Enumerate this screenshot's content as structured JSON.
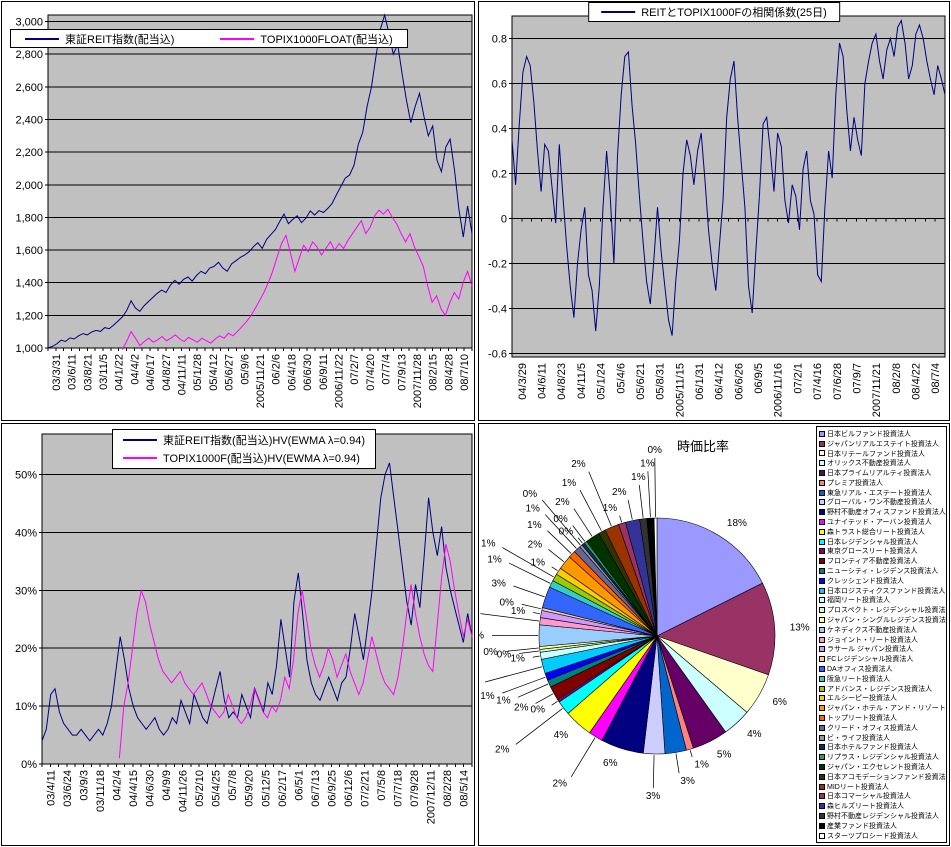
{
  "window": {
    "background": "#FFFFFF"
  },
  "palette": {
    "plot_bg": "#C0C0C0",
    "grid": "#000000",
    "navy": "#000080",
    "magenta": "#FF00FF"
  },
  "chart_data": [
    {
      "id": "reit-index-chart",
      "type": "line",
      "position": "top-left",
      "legend": [
        {
          "label": "東証REIT指数(配当込)",
          "color": "#000080"
        },
        {
          "label": "TOPIX1000FLOAT(配当込)",
          "color": "#FF00FF"
        }
      ],
      "ylim": [
        1000,
        3040
      ],
      "grid": {
        "min": 1000,
        "max": 3000,
        "step": 200
      },
      "y_tick_labels": [
        "3,000",
        "2,800",
        "2,600",
        "2,400",
        "2,200",
        "2,000",
        "1,800",
        "1,600",
        "1,400",
        "1,200",
        "1,000"
      ],
      "x_tick_labels": [
        "03/3/31",
        "03/6/11",
        "03/8/21",
        "03/11/5",
        "04/1/22",
        "04/4/2",
        "04/6/17",
        "04/8/27",
        "04/11/11",
        "05/1/28",
        "05/4/12",
        "05/6/27",
        "05/9/6",
        "2005/11/21",
        "06/2/6",
        "06/4/18",
        "06/6/30",
        "06/9/11",
        "2006/11/22",
        "07/2/7",
        "07/4/20",
        "07/7/4",
        "07/9/13",
        "2007/11/28",
        "08/2/15",
        "08/4/28",
        "08/7/10"
      ],
      "tick_axis": "bottom",
      "series": [
        {
          "name": "東証REIT指数(配当込)",
          "color": "#000080",
          "start_frac": 0,
          "values": [
            1000,
            1010,
            1025,
            1048,
            1040,
            1062,
            1055,
            1075,
            1088,
            1080,
            1098,
            1108,
            1102,
            1125,
            1118,
            1140,
            1165,
            1190,
            1230,
            1290,
            1245,
            1225,
            1260,
            1285,
            1310,
            1335,
            1355,
            1340,
            1385,
            1415,
            1390,
            1420,
            1435,
            1410,
            1445,
            1470,
            1455,
            1490,
            1500,
            1525,
            1490,
            1470,
            1515,
            1535,
            1555,
            1570,
            1590,
            1620,
            1645,
            1610,
            1665,
            1695,
            1725,
            1775,
            1820,
            1762,
            1788,
            1810,
            1768,
            1795,
            1840,
            1815,
            1842,
            1830,
            1855,
            1885,
            1940,
            1990,
            2040,
            2060,
            2120,
            2250,
            2320,
            2480,
            2600,
            2780,
            2950,
            3040,
            2930,
            2800,
            2860,
            2680,
            2520,
            2380,
            2480,
            2560,
            2420,
            2300,
            2360,
            2150,
            2080,
            2230,
            2280,
            2090,
            1850,
            1680,
            1870,
            1700
          ]
        },
        {
          "name": "TOPIX1000FLOAT(配当込)",
          "color": "#FF00FF",
          "start_frac": 0.175,
          "values": [
            990,
            1040,
            1100,
            1060,
            1015,
            1040,
            1060,
            1035,
            1050,
            1070,
            1045,
            1060,
            1080,
            1055,
            1040,
            1065,
            1050,
            1035,
            1060,
            1045,
            1030,
            1055,
            1075,
            1060,
            1090,
            1075,
            1100,
            1130,
            1160,
            1195,
            1240,
            1290,
            1340,
            1400,
            1470,
            1560,
            1640,
            1690,
            1580,
            1470,
            1550,
            1630,
            1590,
            1650,
            1620,
            1570,
            1610,
            1650,
            1600,
            1640,
            1610,
            1660,
            1700,
            1740,
            1780,
            1700,
            1740,
            1810,
            1845,
            1820,
            1850,
            1800,
            1760,
            1700,
            1650,
            1700,
            1620,
            1560,
            1500,
            1380,
            1280,
            1320,
            1240,
            1200,
            1280,
            1340,
            1300,
            1400,
            1470,
            1380
          ]
        }
      ]
    },
    {
      "id": "correlation-chart",
      "type": "line",
      "position": "top-right",
      "legend": [
        {
          "label": "REITとTOPIX1000Fの相関係数(25日)",
          "color": "#000080"
        }
      ],
      "ylim": [
        -0.615,
        0.9
      ],
      "grid": {
        "min": -0.6,
        "max": 0.8,
        "step": 0.2
      },
      "y_tick_labels": [
        "0.8",
        "0.6",
        "0.4",
        "0.2",
        "0",
        "-0.2",
        "-0.4",
        "-0.6"
      ],
      "x_tick_labels": [
        "04/3/29",
        "04/6/11",
        "04/8/23",
        "04/11/5",
        "05/1/24",
        "05/4/6",
        "05/6/21",
        "05/8/31",
        "2005/11/15",
        "06/1/31",
        "06/4/12",
        "06/6/26",
        "06/9/5",
        "2006/11/16",
        "07/2/1",
        "07/4/16",
        "07/6/28",
        "07/9/7",
        "2007/11/21",
        "08/2/8",
        "08/4/22",
        "08/7/4"
      ],
      "tick_axis": "zero",
      "series": [
        {
          "name": "REITとTOPIX1000Fの相関係数(25日)",
          "color": "#000080",
          "start_frac": 0,
          "values": [
            0.35,
            0.15,
            0.42,
            0.65,
            0.72,
            0.68,
            0.52,
            0.3,
            0.12,
            0.33,
            0.3,
            0.14,
            -0.02,
            0.33,
            0.1,
            -0.12,
            -0.3,
            -0.44,
            -0.2,
            -0.05,
            0.05,
            -0.25,
            -0.32,
            -0.5,
            -0.3,
            0.05,
            0.3,
            0.1,
            -0.2,
            0.28,
            0.55,
            0.72,
            0.74,
            0.5,
            0.33,
            0.1,
            -0.1,
            -0.28,
            -0.38,
            -0.18,
            0.05,
            -0.15,
            -0.3,
            -0.45,
            -0.52,
            -0.28,
            -0.1,
            0.2,
            0.35,
            0.28,
            0.15,
            0.3,
            0.38,
            0.18,
            -0.05,
            -0.2,
            -0.32,
            -0.12,
            0.08,
            0.45,
            0.62,
            0.7,
            0.45,
            0.25,
            0.05,
            -0.3,
            -0.42,
            -0.15,
            0.1,
            0.42,
            0.45,
            0.3,
            0.12,
            0.38,
            0.32,
            0.08,
            -0.02,
            0.15,
            0.1,
            -0.05,
            0.22,
            0.3,
            0.08,
            0.02,
            -0.25,
            -0.28,
            0.05,
            0.3,
            0.18,
            0.55,
            0.78,
            0.72,
            0.48,
            0.3,
            0.45,
            0.35,
            0.28,
            0.6,
            0.7,
            0.78,
            0.82,
            0.7,
            0.62,
            0.75,
            0.8,
            0.72,
            0.85,
            0.88,
            0.78,
            0.62,
            0.68,
            0.82,
            0.86,
            0.8,
            0.7,
            0.62,
            0.55,
            0.68,
            0.62,
            0.55
          ]
        }
      ]
    },
    {
      "id": "hv-chart",
      "type": "line",
      "position": "bottom-left",
      "legend": [
        {
          "label": "東証REIT指数(配当込)HV(EWMA λ=0.94)",
          "color": "#000080"
        },
        {
          "label": "TOPIX1000F(配当込)HV(EWMA λ=0.94)",
          "color": "#FF00FF"
        }
      ],
      "ylim": [
        0,
        57
      ],
      "grid": {
        "min": 0,
        "max": 50,
        "step": 10
      },
      "y_tick_labels": [
        "50%",
        "40%",
        "30%",
        "20%",
        "10%",
        "0%"
      ],
      "x_tick_labels": [
        "03/4/11",
        "03/6/24",
        "03/9/3",
        "03/11/18",
        "04/2/4",
        "04/4/15",
        "04/6/30",
        "04/9/9",
        "04/11/26",
        "05/2/10",
        "05/4/25",
        "05/7/8",
        "05/9/20",
        "05/12/5",
        "06/2/17",
        "06/5/1",
        "06/7/13",
        "06/9/25",
        "06/12/6",
        "07/2/21",
        "07/5/8",
        "07/7/18",
        "07/9/28",
        "2007/12/11",
        "08/2/28",
        "08/5/14"
      ],
      "tick_axis": "bottom",
      "series": [
        {
          "name": "東証REIT指数(配当込)HV(EWMA λ=0.94)",
          "color": "#000080",
          "start_frac": 0,
          "values": [
            4,
            6,
            12,
            13,
            9,
            7,
            6,
            5,
            5,
            6,
            5,
            4,
            5,
            6,
            5,
            7,
            10,
            16,
            22,
            18,
            13,
            10,
            8,
            7,
            6,
            7,
            8,
            6,
            5,
            6,
            8,
            7,
            11,
            9,
            7,
            12,
            10,
            8,
            7,
            10,
            13,
            16,
            11,
            8,
            9,
            8,
            12,
            10,
            8,
            13,
            11,
            9,
            14,
            12,
            17,
            25,
            20,
            15,
            28,
            33,
            26,
            18,
            14,
            12,
            11,
            13,
            15,
            13,
            11,
            14,
            15,
            20,
            26,
            22,
            18,
            24,
            30,
            38,
            46,
            50,
            52,
            46,
            40,
            34,
            28,
            24,
            31,
            27,
            36,
            46,
            40,
            36,
            41,
            34,
            30,
            27,
            24,
            21,
            26,
            22
          ]
        },
        {
          "name": "TOPIX1000F(配当込)HV(EWMA λ=0.94)",
          "color": "#FF00FF",
          "start_frac": 0.18,
          "values": [
            1,
            10,
            14,
            20,
            26,
            30,
            28,
            24,
            21,
            18,
            16,
            15,
            14,
            15,
            16,
            14,
            13,
            12,
            13,
            14,
            12,
            10,
            9,
            8,
            9,
            12,
            10,
            8,
            7,
            8,
            10,
            13,
            11,
            9,
            8,
            10,
            9,
            11,
            15,
            13,
            18,
            26,
            30,
            25,
            20,
            17,
            15,
            17,
            20,
            18,
            15,
            17,
            19,
            16,
            14,
            12,
            14,
            18,
            22,
            19,
            16,
            14,
            13,
            12,
            15,
            20,
            26,
            31,
            26,
            22,
            19,
            17,
            16,
            24,
            32,
            38,
            35,
            30,
            26,
            22,
            25,
            22
          ]
        }
      ]
    },
    {
      "id": "market-cap-pie",
      "type": "pie",
      "position": "bottom-right",
      "title": "時価比率",
      "slices": [
        {
          "name": "日本ビルファンド投資法人",
          "pct": 18,
          "color": "#9999FF"
        },
        {
          "name": "ジャパンリアルエステイト投資法人",
          "pct": 13,
          "color": "#993366"
        },
        {
          "name": "日本リテールファンド投資法人",
          "pct": 6,
          "color": "#FFFFCC"
        },
        {
          "name": "オリックス不動産投資法人",
          "pct": 4,
          "color": "#CCFFFF"
        },
        {
          "name": "日本プライムリアルティ投資法人",
          "pct": 5,
          "color": "#660066"
        },
        {
          "name": "プレミア投資法人",
          "pct": 1,
          "color": "#FF8080"
        },
        {
          "name": "東急リアル・エステート投資法人",
          "pct": 3,
          "color": "#0066CC"
        },
        {
          "name": "グローバル・ワン不動産投資法人",
          "pct": 3,
          "color": "#CCCCFF"
        },
        {
          "name": "野村不動産オフィスファンド投資法人",
          "pct": 6,
          "color": "#000080"
        },
        {
          "name": "ユナイテッド・アーバン投資法人",
          "pct": 2,
          "color": "#FF00FF"
        },
        {
          "name": "森トラスト総合リート投資法人",
          "pct": 4,
          "color": "#FFFF00"
        },
        {
          "name": "日本レジデンシャル投資法人",
          "pct": 2,
          "color": "#00FFFF"
        },
        {
          "name": "東京グロースリート投資法人",
          "pct": 0,
          "color": "#800080"
        },
        {
          "name": "フロンティア不動産投資法人",
          "pct": 2,
          "color": "#800000"
        },
        {
          "name": "ニューシティ・レジデンス投資法人",
          "pct": 1,
          "color": "#008080"
        },
        {
          "name": "クレッシェンド投資法人",
          "pct": 1,
          "color": "#0000FF"
        },
        {
          "name": "日本ロジスティクスファンド投資法人",
          "pct": 2,
          "color": "#00CCFF"
        },
        {
          "name": "福岡リート投資法人",
          "pct": 1,
          "color": "#CCFFFF"
        },
        {
          "name": "プロスペクト・レジデンシャル投資法人",
          "pct": 0,
          "color": "#CCFFCC"
        },
        {
          "name": "ジャパン・シングルレジデンス投資法人",
          "pct": 0,
          "color": "#FFFF99"
        },
        {
          "name": "ケネディクス不動産投資法人",
          "pct": 3,
          "color": "#99CCFF"
        },
        {
          "name": "ジョイント・リート投資法人",
          "pct": 1,
          "color": "#FF99CC"
        },
        {
          "name": "ラサール ジャパン投資法人",
          "pct": 1,
          "color": "#CC99FF"
        },
        {
          "name": "FCレジデンシャル投資法人",
          "pct": 0,
          "color": "#FFCC99"
        },
        {
          "name": "DAオフィス投資法人",
          "pct": 3,
          "color": "#3366FF"
        },
        {
          "name": "阪急リート投資法人",
          "pct": 1,
          "color": "#33CCCC"
        },
        {
          "name": "アドバンス・レジデンス投資法人",
          "pct": 1,
          "color": "#99CC00"
        },
        {
          "name": "エルシーピー投資法人",
          "pct": 1,
          "color": "#FFCC00"
        },
        {
          "name": "ジャパン・ホテル・アンド・リゾート投資法人",
          "pct": 2,
          "color": "#FF9900"
        },
        {
          "name": "トップリート投資法人",
          "pct": 1,
          "color": "#FF6600"
        },
        {
          "name": "クリード・オフィス投資法人",
          "pct": 1,
          "color": "#666699"
        },
        {
          "name": "ビ・ライフ投資法人",
          "pct": 0,
          "color": "#969696"
        },
        {
          "name": "日本ホテルファンド投資法人",
          "pct": 0,
          "color": "#003366"
        },
        {
          "name": "リプラス・レジデンシャル投資法人",
          "pct": 0,
          "color": "#339966"
        },
        {
          "name": "ジャパン・エクセレント投資法人",
          "pct": 2,
          "color": "#003300"
        },
        {
          "name": "日本アコモデーションファンド投資法人",
          "pct": 1,
          "color": "#333300"
        },
        {
          "name": "MIDリート投資法人",
          "pct": 2,
          "color": "#993300"
        },
        {
          "name": "日本コマーシャル投資法人",
          "pct": 1,
          "color": "#993366"
        },
        {
          "name": "森ヒルズリート投資法人",
          "pct": 2,
          "color": "#333399"
        },
        {
          "name": "野村不動産レジデンシャル投資法人",
          "pct": 1,
          "color": "#333333"
        },
        {
          "name": "産業ファンド投資法人",
          "pct": 1,
          "color": "#000000"
        },
        {
          "name": "スターツプロシード投資法人",
          "pct": 0,
          "color": "#FFFFFF"
        }
      ]
    }
  ]
}
